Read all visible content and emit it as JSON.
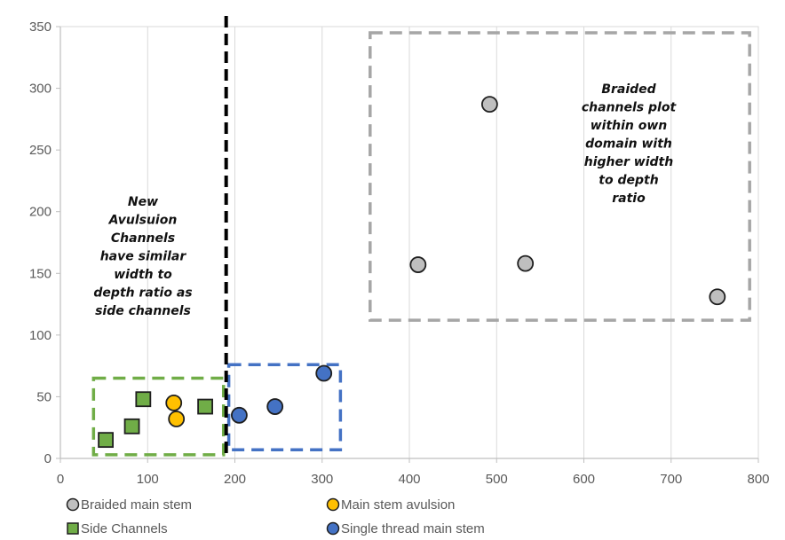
{
  "chart_data": {
    "type": "scatter",
    "title": "",
    "xlabel": "",
    "ylabel": "",
    "xlim": [
      0,
      800
    ],
    "ylim": [
      0,
      350
    ],
    "x_ticks": [
      "0",
      "100",
      "200",
      "300",
      "400",
      "500",
      "600",
      "700",
      "800"
    ],
    "y_ticks": [
      "0",
      "50",
      "100",
      "150",
      "200",
      "250",
      "300",
      "350"
    ],
    "grid": "vertical",
    "legend_position": "bottom",
    "series": [
      {
        "name": "Braided main stem",
        "marker": "circle",
        "color": "#bfbfbf",
        "points": [
          [
            410,
            157
          ],
          [
            492,
            287
          ],
          [
            533,
            158
          ],
          [
            753,
            131
          ]
        ]
      },
      {
        "name": "Main stem avulsion",
        "marker": "circle",
        "color": "#ffc000",
        "points": [
          [
            130,
            45
          ],
          [
            133,
            32
          ]
        ]
      },
      {
        "name": "Side Channels",
        "marker": "square",
        "color": "#70ad47",
        "points": [
          [
            52,
            15
          ],
          [
            82,
            26
          ],
          [
            95,
            48
          ],
          [
            166,
            42
          ]
        ]
      },
      {
        "name": "Single thread main stem",
        "marker": "circle",
        "color": "#4472c4",
        "points": [
          [
            205,
            35
          ],
          [
            246,
            42
          ],
          [
            302,
            69
          ]
        ]
      }
    ],
    "divider_line": {
      "x": 190,
      "color": "#000000"
    },
    "domain_boxes": [
      {
        "x": [
          38,
          187
        ],
        "y": [
          3,
          65
        ],
        "color": "#70ad47"
      },
      {
        "x": [
          193,
          321
        ],
        "y": [
          7,
          76
        ],
        "color": "#4472c4"
      },
      {
        "x": [
          355,
          790
        ],
        "y": [
          112,
          345
        ],
        "color": "#a6a6a6"
      }
    ],
    "annotations": [
      {
        "lines": [
          "New",
          "Avulsuion",
          "Channels",
          "have similar",
          "width to",
          "depth ratio as",
          "side channels"
        ]
      },
      {
        "lines": [
          "Braided",
          "channels plot",
          "within own",
          "domain with",
          "higher width",
          "to depth",
          "ratio"
        ]
      }
    ]
  }
}
